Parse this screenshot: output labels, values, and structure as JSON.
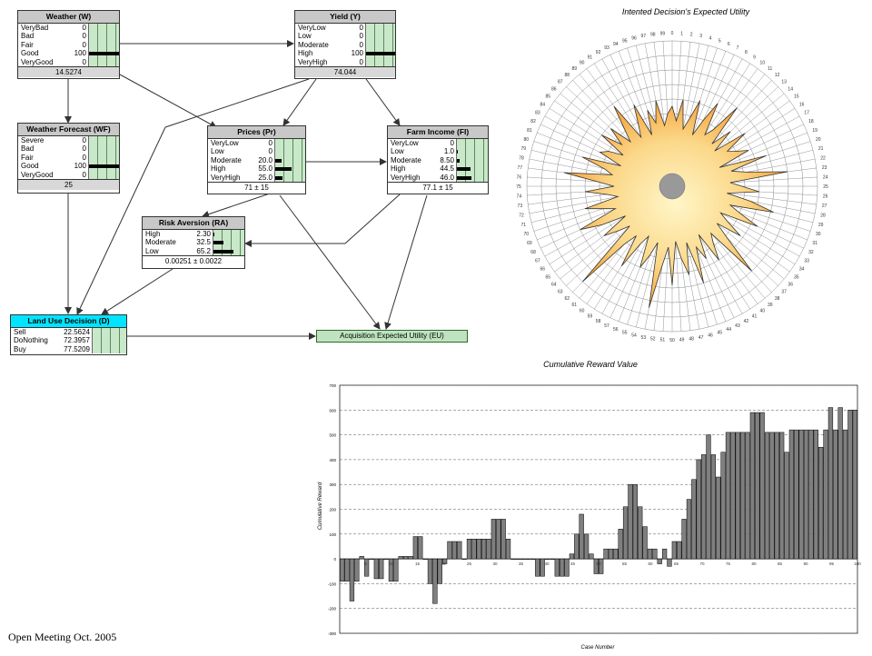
{
  "network": {
    "nodes": [
      {
        "id": "weather",
        "title": "Weather (W)",
        "states": [
          "VeryBad",
          "Bad",
          "Fair",
          "Good",
          "VeryGood"
        ],
        "values": [
          "0",
          "0",
          "0",
          "100",
          "0"
        ],
        "probs": [
          0,
          0,
          0,
          100,
          0
        ],
        "footer": "14.5274"
      },
      {
        "id": "yield",
        "title": "Yield (Y)",
        "states": [
          "VeryLow",
          "Low",
          "Moderate",
          "High",
          "VeryHigh"
        ],
        "values": [
          "0",
          "0",
          "0",
          "100",
          "0"
        ],
        "probs": [
          0,
          0,
          0,
          100,
          0
        ],
        "footer": "74.044"
      },
      {
        "id": "forecast",
        "title": "Weather Forecast (WF)",
        "states": [
          "Severe",
          "Bad",
          "Fair",
          "Good",
          "VeryGood"
        ],
        "values": [
          "0",
          "0",
          "0",
          "100",
          "0"
        ],
        "probs": [
          0,
          0,
          0,
          100,
          0
        ],
        "footer": "25"
      },
      {
        "id": "prices",
        "title": "Prices (Pr)",
        "states": [
          "VeryLow",
          "Low",
          "Moderate",
          "High",
          "VeryHigh"
        ],
        "values": [
          "0",
          "0",
          "20.0",
          "55.0",
          "25.0"
        ],
        "probs": [
          0,
          0,
          20,
          55,
          25
        ],
        "footer": "71 ± 15"
      },
      {
        "id": "income",
        "title": "Farm Income (FI)",
        "states": [
          "VeryLow",
          "Low",
          "Moderate",
          "High",
          "VeryHigh"
        ],
        "values": [
          "0",
          "1.0",
          "8.50",
          "44.5",
          "46.0"
        ],
        "probs": [
          0,
          1,
          8.5,
          44.5,
          46
        ],
        "footer": "77.1 ± 15"
      },
      {
        "id": "risk",
        "title": "Risk Aversion (RA)",
        "states": [
          "High",
          "Moderate",
          "Low"
        ],
        "values": [
          "2.30",
          "32.5",
          "65.2"
        ],
        "probs": [
          2.3,
          32.5,
          65.2
        ],
        "footer": "0.00251 ± 0.0022"
      },
      {
        "id": "decision",
        "title": "Land Use Decision (D)",
        "states": [
          "Sell",
          "DoNothing",
          "Buy"
        ],
        "values": [
          "22.5624",
          "72.3957",
          "77.5209"
        ],
        "probs": [
          0,
          0,
          0
        ],
        "footer": ""
      }
    ],
    "utility_label": "Acquisition Expected Utility (EU)"
  },
  "chart_data": [
    {
      "type": "radar",
      "title": "Intented Decision's Expected Utility",
      "categories_count": 100,
      "fill_color": "#f6a640",
      "values": [
        55,
        45,
        60,
        40,
        48,
        62,
        38,
        50,
        65,
        42,
        48,
        70,
        40,
        55,
        38,
        62,
        45,
        50,
        58,
        35,
        68,
        42,
        52,
        80,
        40,
        48,
        60,
        38,
        55,
        72,
        42,
        50,
        65,
        38,
        45,
        58,
        40,
        52,
        80,
        42,
        48,
        60,
        38,
        55,
        45,
        70,
        40,
        62,
        50,
        38,
        68,
        42,
        55,
        85,
        40,
        50,
        60,
        38,
        45,
        65,
        42,
        52,
        90,
        40,
        48,
        58,
        38,
        55,
        70,
        42,
        50,
        62,
        38,
        45,
        60,
        40,
        52,
        75,
        42,
        48,
        65,
        38,
        55,
        50,
        40,
        60,
        45,
        58,
        42,
        52,
        68,
        40,
        48,
        62,
        38,
        55,
        45,
        60,
        42,
        50
      ]
    },
    {
      "type": "bar",
      "title": "Cumulative Reward Value",
      "xlabel": "Case Number",
      "ylabel": "Cumulative Reward",
      "ylim": [
        -300,
        700
      ],
      "yticks": [
        -300,
        -200,
        -100,
        0,
        100,
        200,
        300,
        400,
        500,
        600,
        700
      ],
      "xticks": [
        5,
        10,
        15,
        20,
        25,
        30,
        35,
        40,
        45,
        50,
        55,
        60,
        65,
        70,
        75,
        80,
        85,
        90,
        95,
        100
      ],
      "bar_color": "#7f7f7f",
      "values": [
        -90,
        -90,
        -170,
        -90,
        10,
        -70,
        0,
        -80,
        -80,
        0,
        -90,
        -90,
        10,
        10,
        10,
        90,
        90,
        0,
        -100,
        -180,
        -100,
        -20,
        70,
        70,
        70,
        0,
        80,
        80,
        80,
        80,
        80,
        160,
        160,
        160,
        80,
        0,
        0,
        0,
        0,
        0,
        -70,
        -70,
        0,
        0,
        -70,
        -70,
        -70,
        20,
        100,
        180,
        100,
        20,
        -60,
        -60,
        40,
        40,
        40,
        120,
        210,
        300,
        300,
        210,
        130,
        40,
        40,
        -20,
        40,
        -30,
        70,
        70,
        160,
        240,
        320,
        400,
        420,
        500,
        420,
        330,
        430,
        510,
        510,
        510,
        510,
        510,
        590,
        590,
        590,
        510,
        510,
        510,
        510,
        430,
        520,
        520,
        520,
        520,
        520,
        520,
        450,
        520,
        610,
        520,
        610,
        520,
        600,
        600
      ]
    }
  ],
  "footer_text": "Open Meeting Oct. 2005"
}
